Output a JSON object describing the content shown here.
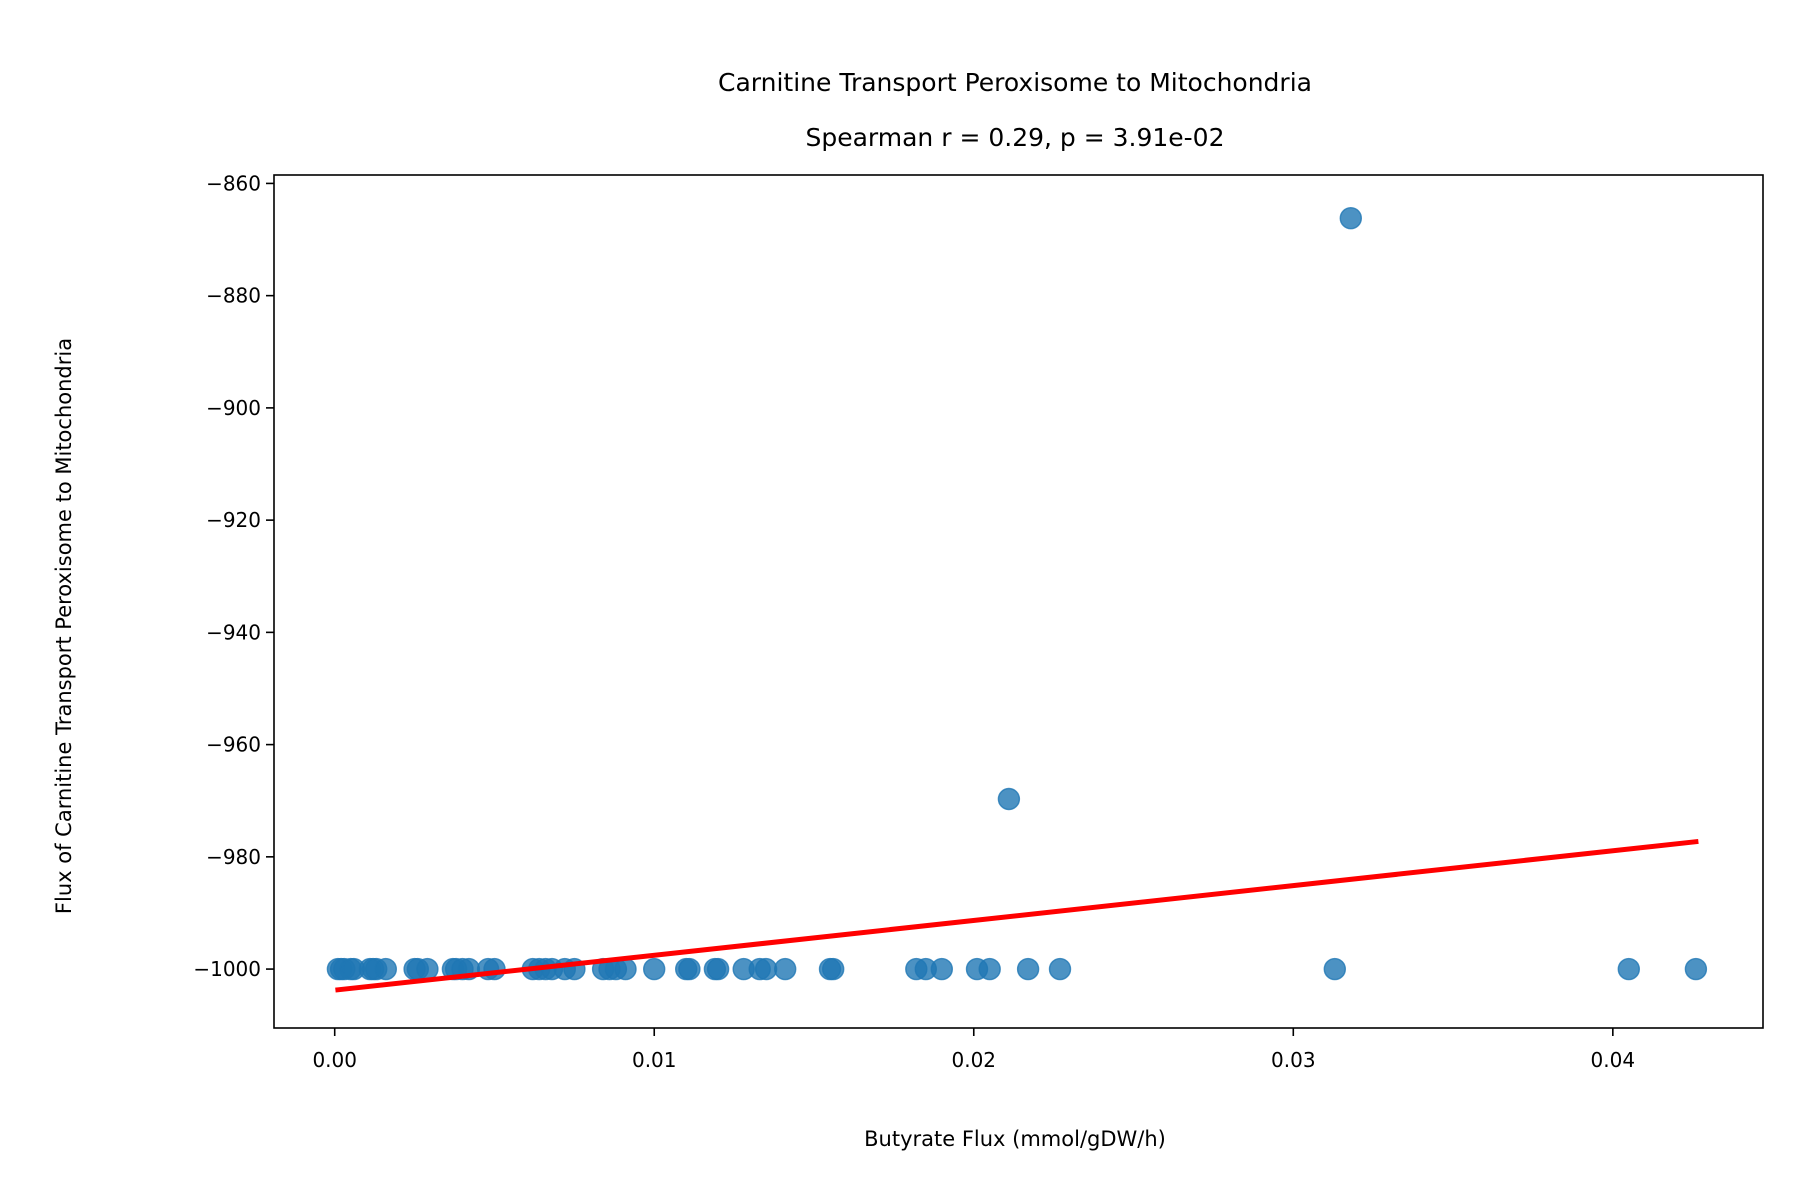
{
  "chart_data": {
    "type": "scatter",
    "title": "Carnitine Transport Peroxisome to Mitochondria",
    "subtitle": "Spearman r = 0.29, p = 3.91e-02",
    "xlabel": "Butyrate Flux (mmol/gDW/h)",
    "ylabel": "Flux of Carnitine Transport Peroxisome to Mitochondria",
    "xlim": [
      -0.0019,
      0.0447
    ],
    "ylim": [
      -1010.5,
      -858.5
    ],
    "x_ticks": [
      0.0,
      0.01,
      0.02,
      0.03,
      0.04
    ],
    "x_tick_labels": [
      "0.00",
      "0.01",
      "0.02",
      "0.03",
      "0.04"
    ],
    "y_ticks": [
      -860,
      -880,
      -900,
      -920,
      -940,
      -960,
      -980,
      -1000
    ],
    "y_tick_labels": [
      "−860",
      "−880",
      "−900",
      "−920",
      "−940",
      "−960",
      "−980",
      "−1000"
    ],
    "grid": false,
    "colors": {
      "points": "#1f77b4",
      "fit_line": "#ff0000"
    },
    "points": [
      {
        "x": 0.0001,
        "y": -1000
      },
      {
        "x": 0.0002,
        "y": -1000
      },
      {
        "x": 0.0003,
        "y": -1000
      },
      {
        "x": 0.0005,
        "y": -1000
      },
      {
        "x": 0.0006,
        "y": -1000
      },
      {
        "x": 0.0011,
        "y": -1000
      },
      {
        "x": 0.0012,
        "y": -1000
      },
      {
        "x": 0.0013,
        "y": -1000
      },
      {
        "x": 0.0016,
        "y": -1000
      },
      {
        "x": 0.0025,
        "y": -1000
      },
      {
        "x": 0.0026,
        "y": -1000
      },
      {
        "x": 0.0029,
        "y": -1000
      },
      {
        "x": 0.0037,
        "y": -1000
      },
      {
        "x": 0.0038,
        "y": -1000
      },
      {
        "x": 0.004,
        "y": -1000
      },
      {
        "x": 0.0042,
        "y": -1000
      },
      {
        "x": 0.0048,
        "y": -1000
      },
      {
        "x": 0.005,
        "y": -1000
      },
      {
        "x": 0.0062,
        "y": -1000
      },
      {
        "x": 0.0064,
        "y": -1000
      },
      {
        "x": 0.0066,
        "y": -1000
      },
      {
        "x": 0.0068,
        "y": -1000
      },
      {
        "x": 0.0072,
        "y": -1000
      },
      {
        "x": 0.0075,
        "y": -1000
      },
      {
        "x": 0.0084,
        "y": -1000
      },
      {
        "x": 0.0086,
        "y": -1000
      },
      {
        "x": 0.0088,
        "y": -1000
      },
      {
        "x": 0.0091,
        "y": -1000
      },
      {
        "x": 0.01,
        "y": -1000
      },
      {
        "x": 0.011,
        "y": -1000
      },
      {
        "x": 0.0111,
        "y": -1000
      },
      {
        "x": 0.0119,
        "y": -1000
      },
      {
        "x": 0.012,
        "y": -1000
      },
      {
        "x": 0.0128,
        "y": -1000
      },
      {
        "x": 0.0133,
        "y": -1000
      },
      {
        "x": 0.0135,
        "y": -1000
      },
      {
        "x": 0.0141,
        "y": -1000
      },
      {
        "x": 0.0155,
        "y": -1000
      },
      {
        "x": 0.0156,
        "y": -1000
      },
      {
        "x": 0.0182,
        "y": -1000
      },
      {
        "x": 0.0185,
        "y": -1000
      },
      {
        "x": 0.019,
        "y": -1000
      },
      {
        "x": 0.0201,
        "y": -1000
      },
      {
        "x": 0.0205,
        "y": -1000
      },
      {
        "x": 0.0217,
        "y": -1000
      },
      {
        "x": 0.0227,
        "y": -1000
      },
      {
        "x": 0.0313,
        "y": -1000
      },
      {
        "x": 0.0405,
        "y": -1000
      },
      {
        "x": 0.0426,
        "y": -1000
      },
      {
        "x": 0.0211,
        "y": -969.7
      },
      {
        "x": 0.0318,
        "y": -866.2
      }
    ],
    "fit_line": {
      "x": [
        0.0001,
        0.0426
      ],
      "y": [
        -1003.7,
        -977.3
      ]
    }
  }
}
